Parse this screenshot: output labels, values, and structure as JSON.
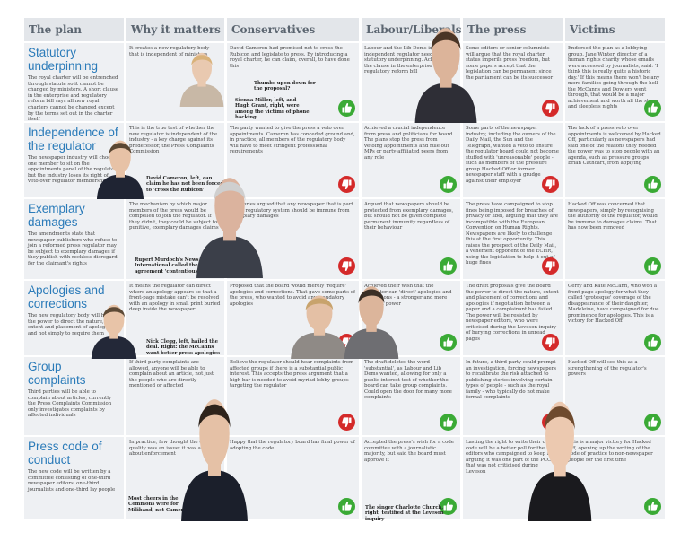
{
  "headers": [
    "The plan",
    "Why it matters",
    "Conservatives",
    "Labour/Liberals",
    "The press",
    "Victims"
  ],
  "rows": [
    {
      "title": "Statutory underpinning",
      "desc": "The royal charter will be entrenched through statute so it cannot be changed by ministers. A short clause in the enterprise and regulatory reform bill says all new royal charters cannot be changed except by the terms set out in the charter itself",
      "cells": [
        {
          "text": "It creates a new regulatory body that is independent of ministers",
          "thumb": "none"
        },
        {
          "text": "David Cameron had promised not to cross the Rubicon and legislate to press. By introducing a royal charter, he can claim, overall, to have done this",
          "thumb": "up",
          "caption": "Thumbs upon down for the proposal?"
        },
        {
          "text": "Labour and the Lib Dems insisted an independent regulator needed some statutory underpinning. Achieved by the clause in the enterprise and regulatory reform bill",
          "thumb": "up"
        },
        {
          "text": "Some editors or senior columnists will argue that the royal charter status imperils press freedom, but some papers accept that the legislation can be permanent since the parliament can be its successor",
          "thumb": "down"
        },
        {
          "text": "Endorsed the plan as a lobbying group. Jane Winter, director of a human rights charity whose emails were accessed by journalists, said: 'I think this is really quite a historic day.' If this means there won't be any more families going through the hell the McCanns and Dowlers went through, that would be a major achievement and worth all the stress and sleepless nights",
          "thumb": "up"
        }
      ]
    },
    {
      "title": "Independence of the regulator",
      "desc": "The newspaper industry will choose one member to sit on the appointments panel of the regulator, but the industry loses its right of veto over regulator membership",
      "cells": [
        {
          "text": "This is the true test of whether the new regulator is independent of the industry - a key charge against its predecessor, the Press Complaints Commission",
          "thumb": "none"
        },
        {
          "text": "The party wanted to give the press a veto over appointments. Cameron has conceded ground and, in practice, all members of the regulatory body will have to meet stringent professional requirements",
          "thumb": "down"
        },
        {
          "text": "Achieved a crucial independence from press and politicians for board. The plans stop the press from vetoing appointments and rule out MPs or party-affiliated peers from any role",
          "thumb": "up"
        },
        {
          "text": "Some parts of the newspaper industry, including the owners of the Daily Mail, the Sun and the Telegraph, wanted a veto to ensure the regulator board could not become stuffed with 'unreasonable' people - such as members of the pressure group Hacked Off or former newspaper staff with a grudge against their employer",
          "thumb": "down"
        },
        {
          "text": "The lack of a press veto over appointments is welcomed by Hacked Off, particularly as newspapers had said one of the reasons they needed the power was to stop people with an agenda, such as pressure groups Brian Cathcart, from applying",
          "thumb": "up"
        }
      ]
    },
    {
      "title": "Exemplary damages",
      "desc": "The amendments state that newspaper publishers who refuse to join a reformed press regulator may be subject to exemplary damages if they publish with reckless disregard for the claimant's rights",
      "cells": [
        {
          "text": "The mechanism by which major members of the press would be compelled to join the regulator. If they didn't, they could be subject to punitive, exemplary damages claims",
          "thumb": "none"
        },
        {
          "text": "The Tories argued that any newspaper that is part of the regulatory system should be immune from exemplary damages",
          "thumb": "down"
        },
        {
          "text": "Argued that newspapers should be protected from exemplary damages, but should not be given complete permanent immunity regardless of their behaviour",
          "thumb": "up"
        },
        {
          "text": "The press have campaigned to stop fines being imposed for breaches of privacy or libel, arguing that they are incompatible with the European Convention on Human Rights. Newspapers are likely to challenge this at the first opportunity. This raises the prospect of the Daily Mail, a vehement opponent of the ECHR, using the legislation to help it out of huge fines",
          "thumb": "down"
        },
        {
          "text": "Hacked Off was concerned that newspapers, simply by recognising the authority of the regulator, would be immune to damages claims. That has now been removed",
          "thumb": "up"
        }
      ]
    },
    {
      "title": "Apologies and corrections",
      "desc": "The new regulatory body will have the power to direct the nature, extent and placement of apologies and not simply to require them",
      "cells": [
        {
          "text": "It means the regulator can direct where an apology appears so that a front-page mistake can't be resolved with an apology in small print buried deep inside the newspaper",
          "thumb": "none"
        },
        {
          "text": "Proposed that the board would merely 'require' apologies and corrections. That gave some parts of the press, who wanted to avoid any mandatory apologies",
          "thumb": "down"
        },
        {
          "text": "Achieved their wish that the regulator can 'direct' apologies and corrections - a stronger and more detailed power",
          "thumb": "up"
        },
        {
          "text": "The draft proposals give the board the power to direct the nature, extent and placement of corrections and apologies if negotiation between a paper and a complainant has failed. The power will be resisted by newspaper editors, who were criticised during the Leveson inquiry of burying corrections in unread pages",
          "thumb": "down"
        },
        {
          "text": "Gerry and Kate McCann, who won a front-page apology for what they called 'grotesque' coverage of the disappearance of their daughter, Madeleine, have campaigned for due prominence for apologies. This is a victory for Hacked Off",
          "thumb": "up"
        }
      ]
    },
    {
      "title": "Group complaints",
      "desc": "Third parties will be able to complain about articles, currently the Press Complaints Commission only investigates complaints by affected individuals",
      "cells": [
        {
          "text": "If third-party complaints are allowed, anyone will be able to complain about an article, not just the people who are directly mentioned or affected",
          "thumb": "none"
        },
        {
          "text": "Believe the regulator should hear complaints from affected groups if there is a substantial public interest. This accepts the press argument that a high bar is needed to avoid myriad lobby groups targeting the regulator",
          "thumb": "down"
        },
        {
          "text": "The draft deletes the word 'substantial', as Labour and Lib Dems wanted, allowing for only a public interest test of whether the board can take group complaints. Could open the door for many more complaints",
          "thumb": "up"
        },
        {
          "text": "In future, a third party could prompt an investigation, forcing newspapers to recalibrate the risk attached to publishing stories involving certain types of people - such as the royal family - who typically do not make formal complaints",
          "thumb": "down"
        },
        {
          "text": "Hacked Off will see this as a strengthening of the regulator's powers",
          "thumb": "up"
        }
      ]
    },
    {
      "title": "Press code of conduct",
      "desc": "The new code will be written by a committee consisting of one-third newspaper editors, one-third journalists and one-third lay people",
      "cells": [
        {
          "text": "In practice, few thought the code's quality was an issue; it was always about enforcement",
          "thumb": "none"
        },
        {
          "text": "Happy that the regulatory board has final power of adopting the code",
          "thumb": "up"
        },
        {
          "text": "Accepted the press's wish for a code committee with a journalistic majority, but said the board must approve it",
          "thumb": "up"
        },
        {
          "text": "Lasting the right to write their own code will be a better poll for the editors who campaigned to keep it, arguing it was one part of the PCC that was not criticised during Leveson",
          "thumb": "up"
        },
        {
          "text": "This is a major victory for Hacked Off, opening up the writing of the code of practice to non-newspaper people for the first time",
          "thumb": "up"
        }
      ]
    }
  ],
  "captions": [
    "Sienna Miller, left, and Hugh Grant, right, were among the victims of phone hacking",
    "David Cameron, left, can claim he has not been forced to 'cross the Rubicon'",
    "Rupert Murdoch's News International called the agreement 'contentious'",
    "Nick Clegg, left, hailed the deal. Right: the McCanns want better press apologies",
    "Most cheers in the Commons were for Miliband, not Cameron",
    "The singer Charlotte Church, right, testified at the Leveson inquiry"
  ],
  "colors": {
    "up": "#3aaa35",
    "down": "#d42a2a",
    "header_bg": "#e3e6ea",
    "title_blue": "#2b7bb9"
  },
  "icons": {
    "up": "thumbs-up-icon",
    "down": "thumbs-down-icon"
  }
}
